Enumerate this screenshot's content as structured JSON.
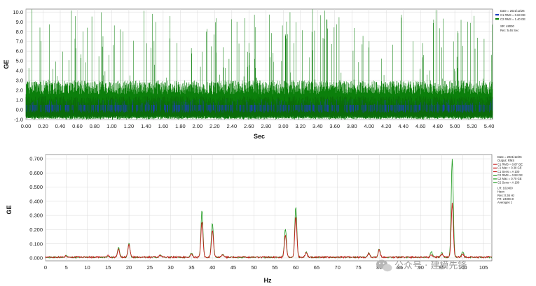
{
  "colors": {
    "ch1_time": "#1f3fbf",
    "ch2_time": "#0b7f0b",
    "ch1_spec": "#c81e1e",
    "ch2_spec": "#1c9a1c",
    "grid": "#d8d8d8"
  },
  "watermark": {
    "text": "公众号 · 建模先锋",
    "icon": "wechat-icon"
  },
  "chart_data": [
    {
      "type": "line",
      "xlabel": "Sec",
      "ylabel": "GE",
      "xlim": [
        0,
        5.44
      ],
      "ylim": [
        -1.0,
        10.3
      ],
      "xticks": [
        "0.00",
        "0.20",
        "0.40",
        "0.60",
        "0.80",
        "1.00",
        "1.20",
        "1.40",
        "1.60",
        "1.80",
        "2.00",
        "2.20",
        "2.40",
        "2.60",
        "2.80",
        "3.00",
        "3.20",
        "3.40",
        "3.60",
        "3.80",
        "4.00",
        "4.20",
        "4.40",
        "4.60",
        "4.80",
        "5.00",
        "5.20",
        "5.40"
      ],
      "yticks": [
        "10.0",
        "9.0",
        "8.0",
        "7.0",
        "6.0",
        "5.0",
        "4.0",
        "3.0",
        "2.0",
        "1.0",
        "0.0",
        "-1.0"
      ],
      "grid": true,
      "legend_position": "top-right",
      "legend": [
        {
          "label": "Date = 2021/12/26"
        },
        {
          "label": "C1 RMS = 0.63 GE",
          "swatch": "ch1"
        },
        {
          "label": "C2 RMS = 1.40 GE",
          "swatch": "ch2"
        },
        {
          "label": "SR: 48000"
        },
        {
          "label": "Rec: 5.46 Sec"
        }
      ],
      "series": [
        {
          "name": "C1",
          "color": "#1f3fbf",
          "baseline": [
            -0.3,
            0.5
          ],
          "spike_range": [
            0.3,
            1.0
          ]
        },
        {
          "name": "C2",
          "color": "#0b7f0b",
          "baseline": [
            -0.95,
            1.6
          ],
          "spike_range": [
            2.0,
            10.3
          ]
        }
      ]
    },
    {
      "type": "line",
      "xlabel": "Hz",
      "ylabel": "GE",
      "xlim": [
        0,
        107
      ],
      "ylim": [
        -0.02,
        0.73
      ],
      "xticks": [
        "0",
        "5",
        "10",
        "15",
        "20",
        "25",
        "30",
        "35",
        "40",
        "45",
        "50",
        "55",
        "60",
        "65",
        "70",
        "75",
        "80",
        "85",
        "90",
        "95",
        "100",
        "105"
      ],
      "yticks": [
        "0.700",
        "0.600",
        "0.500",
        "0.400",
        "0.300",
        "0.200",
        "0.100",
        "0.000"
      ],
      "grid": true,
      "legend_position": "top-right",
      "legend": [
        {
          "label": "Date = 2021/12/26"
        },
        {
          "label": "Output: RMS"
        },
        {
          "label": "C1 RMS = 0.87 GE",
          "swatch": "red"
        },
        {
          "label": "C1 Max = 0.38 GE",
          "swatch": "red"
        },
        {
          "label": "C1 Sens = A 100",
          "swatch": "red"
        },
        {
          "label": "C2 RMS = 0.93 GE",
          "swatch": "green"
        },
        {
          "label": "C2 Max = 0.70 GE",
          "swatch": "green"
        },
        {
          "label": "C2 Sens = A 100",
          "swatch": "green"
        },
        {
          "label": "LR: 102400"
        },
        {
          "label": "Hann"
        },
        {
          "label": "Res: 0.36 Hz"
        },
        {
          "label": "FR: 24000.0"
        },
        {
          "label": "Averages 1"
        }
      ],
      "peaks": [
        {
          "x": 17.5,
          "c1": 0.055,
          "c2": 0.07
        },
        {
          "x": 20.0,
          "c1": 0.085,
          "c2": 0.1
        },
        {
          "x": 37.5,
          "c1": 0.25,
          "c2": 0.33
        },
        {
          "x": 40.0,
          "c1": 0.19,
          "c2": 0.24
        },
        {
          "x": 57.5,
          "c1": 0.15,
          "c2": 0.2
        },
        {
          "x": 60.0,
          "c1": 0.29,
          "c2": 0.36
        },
        {
          "x": 80.0,
          "c1": 0.05,
          "c2": 0.06
        },
        {
          "x": 97.5,
          "c1": 0.38,
          "c2": 0.7
        },
        {
          "x": 35.0,
          "c1": 0.02,
          "c2": 0.03
        },
        {
          "x": 62.5,
          "c1": 0.03,
          "c2": 0.04
        },
        {
          "x": 92.5,
          "c1": 0.015,
          "c2": 0.04
        },
        {
          "x": 95.0,
          "c1": 0.02,
          "c2": 0.03
        },
        {
          "x": 100.0,
          "c1": 0.02,
          "c2": 0.04
        },
        {
          "x": 77.5,
          "c1": 0.025,
          "c2": 0.03
        },
        {
          "x": 27.5,
          "c1": 0.01,
          "c2": 0.015
        },
        {
          "x": 42.5,
          "c1": 0.015,
          "c2": 0.02
        },
        {
          "x": 15.0,
          "c1": 0.01,
          "c2": 0.01
        },
        {
          "x": 5.0,
          "c1": 0.01,
          "c2": 0.015
        }
      ],
      "noise_floor": {
        "c1": [
          0.0,
          0.012
        ],
        "c2": [
          0.0,
          0.01
        ]
      }
    }
  ]
}
